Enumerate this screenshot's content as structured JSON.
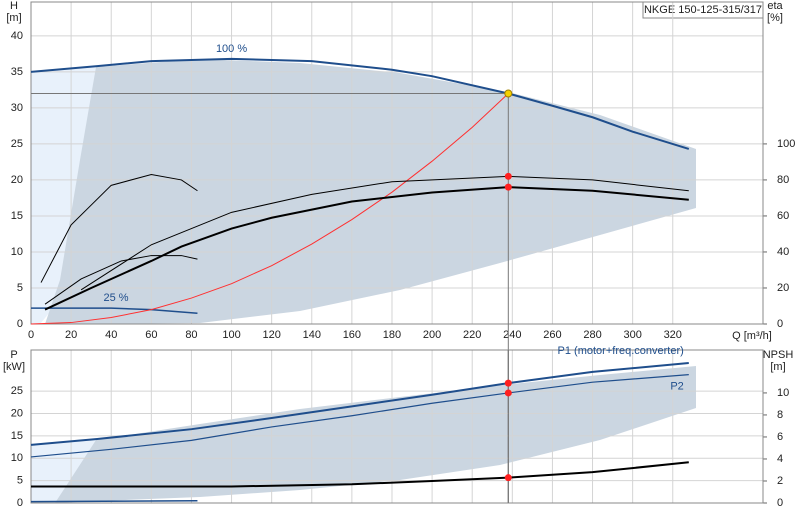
{
  "chart_data": [
    {
      "type": "line",
      "title": "NKGE 150-125-315/317",
      "x_label": "Q [m³/h]",
      "y_label": "H",
      "y_unit": "[m]",
      "y2_label": "eta",
      "y2_unit": "[%]",
      "xlim": [
        0,
        365
      ],
      "xticks": [
        0,
        20,
        40,
        60,
        80,
        100,
        120,
        140,
        160,
        180,
        200,
        220,
        240,
        260,
        280,
        300,
        320
      ],
      "ylim": [
        0,
        44.7
      ],
      "yticks": [
        0,
        5,
        10,
        15,
        20,
        25,
        30,
        35,
        40
      ],
      "y2lim": [
        0,
        178.8
      ],
      "y2ticks": [
        0,
        20,
        40,
        60,
        80,
        100
      ],
      "grid": true,
      "series": [
        {
          "name": "100 %",
          "color": "#1f4e8c",
          "width": 2,
          "x": [
            0,
            33,
            60,
            100,
            140,
            180,
            200,
            238,
            260,
            280,
            300,
            328
          ],
          "values": [
            35,
            35.8,
            36.5,
            36.8,
            36.5,
            35.3,
            34.4,
            32,
            30.3,
            28.7,
            26.7,
            24.3
          ]
        },
        {
          "name": "25 %",
          "color": "#1f4e8c",
          "width": 1.5,
          "x": [
            0,
            40,
            60,
            83
          ],
          "values": [
            2.2,
            2.2,
            2,
            1.5
          ]
        },
        {
          "color": "#ff3030",
          "width": 1,
          "x": [
            0,
            20,
            40,
            60,
            80,
            100,
            120,
            140,
            160,
            180,
            200,
            220,
            238
          ],
          "values": [
            0,
            0.2,
            0.9,
            2,
            3.6,
            5.6,
            8.1,
            11.1,
            14.5,
            18.3,
            22.6,
            27.3,
            32
          ]
        },
        {
          "color": "#000000",
          "width": 1,
          "axis": "y2",
          "x": [
            25,
            60,
            100,
            140,
            180,
            238,
            280,
            328
          ],
          "values": [
            19,
            44,
            62,
            72,
            79,
            82,
            80,
            74
          ]
        },
        {
          "color": "#000000",
          "width": 2,
          "axis": "y2",
          "x": [
            7,
            30,
            60,
            75,
            100,
            120,
            160,
            200,
            238,
            280,
            328
          ],
          "values": [
            8,
            20,
            35,
            43,
            53,
            59,
            68,
            73,
            76,
            74,
            69
          ]
        },
        {
          "color": "#000000",
          "width": 1,
          "axis": "y2",
          "x": [
            5,
            20,
            40,
            60,
            75,
            83
          ],
          "values": [
            23,
            55,
            77,
            83,
            80,
            74
          ]
        },
        {
          "color": "#000000",
          "width": 1,
          "axis": "y2",
          "x": [
            7,
            25,
            45,
            60,
            75,
            83
          ],
          "values": [
            11,
            25,
            35,
            38,
            38,
            36
          ]
        },
        {
          "color": "#ff2020",
          "marker": true,
          "axis": "y2",
          "x": [
            238,
            238
          ],
          "values": [
            82,
            76
          ]
        },
        {
          "color": "#f5d000",
          "marker": true,
          "guides": true,
          "x": [
            238
          ],
          "values": [
            32
          ]
        }
      ]
    },
    {
      "type": "line",
      "y_label": "P",
      "y_unit": "[kW]",
      "y2_label": "NPSH",
      "y2_unit": "[m]",
      "xlim": [
        0,
        365
      ],
      "xticks": [
        0,
        20,
        40,
        60,
        80,
        100,
        120,
        140,
        160,
        180,
        200,
        220,
        240,
        260,
        280,
        300,
        320
      ],
      "ylim": [
        0,
        34.2
      ],
      "yticks": [
        0,
        5,
        10,
        15,
        20,
        25
      ],
      "y2lim": [
        0,
        13.9
      ],
      "y2ticks": [
        0,
        2,
        4,
        6,
        8,
        10
      ],
      "grid": true,
      "series": [
        {
          "name": "P1 (motor+freq.converter)",
          "color": "#1f4e8c",
          "width": 2,
          "x": [
            0,
            33,
            80,
            120,
            160,
            200,
            238,
            280,
            328
          ],
          "values": [
            13,
            14.3,
            16.5,
            19,
            21.6,
            24.2,
            26.8,
            29.3,
            31.3
          ]
        },
        {
          "name": "P2",
          "color": "#1f4e8c",
          "width": 1.2,
          "x": [
            0,
            40,
            80,
            120,
            160,
            200,
            238,
            280,
            328
          ],
          "values": [
            10.3,
            12,
            14,
            17,
            19.5,
            22.3,
            24.6,
            27,
            28.7
          ]
        },
        {
          "color": "#000000",
          "width": 2,
          "axis": "y2",
          "x": [
            0,
            100,
            160,
            200,
            238,
            280,
            328
          ],
          "values": [
            1.5,
            1.5,
            1.7,
            2,
            2.3,
            2.8,
            3.7
          ]
        },
        {
          "color": "#1f4e8c",
          "width": 1.5,
          "x": [
            0,
            83
          ],
          "values": [
            0.3,
            0.5
          ]
        },
        {
          "color": "#ff2020",
          "marker": true,
          "guides": true,
          "x": [
            238,
            238
          ],
          "values": [
            26.8,
            24.6
          ]
        },
        {
          "color": "#ff2020",
          "marker": true,
          "axis": "y2",
          "x": [
            238
          ],
          "values": [
            2.3
          ]
        }
      ]
    }
  ]
}
